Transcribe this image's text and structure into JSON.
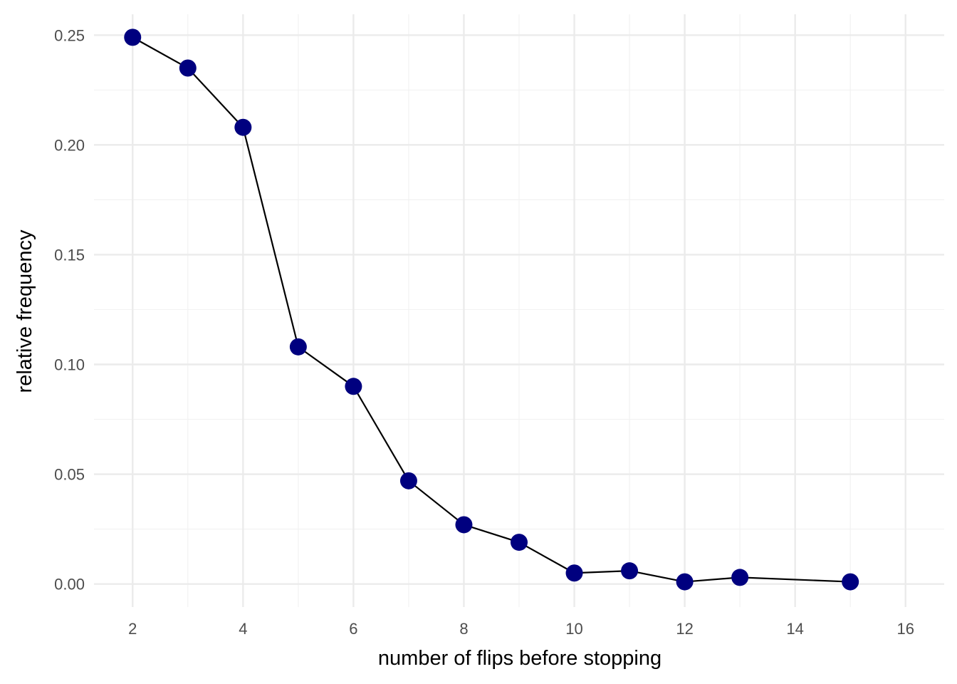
{
  "chart_data": {
    "type": "line",
    "title": "",
    "xlabel": "number of flips before stopping",
    "ylabel": "relative frequency",
    "xlim": [
      1.3,
      16.7
    ],
    "ylim": [
      -0.0105,
      0.2595
    ],
    "x_ticks": [
      2,
      4,
      6,
      8,
      10,
      12,
      14,
      16
    ],
    "x_tick_labels": [
      "2",
      "4",
      "6",
      "8",
      "10",
      "12",
      "14",
      "16"
    ],
    "y_ticks": [
      0.0,
      0.05,
      0.1,
      0.15,
      0.2,
      0.25
    ],
    "y_tick_labels": [
      "0.00",
      "0.05",
      "0.10",
      "0.15",
      "0.20",
      "0.25"
    ],
    "grid": true,
    "legend": "none",
    "series": [
      {
        "x": [
          2,
          3,
          4,
          5,
          6,
          7,
          8,
          9,
          10,
          11,
          12,
          13,
          15
        ],
        "values": [
          0.249,
          0.235,
          0.208,
          0.108,
          0.09,
          0.047,
          0.027,
          0.019,
          0.005,
          0.006,
          0.001,
          0.003,
          0.001
        ],
        "line_color": "#000000",
        "point_color": "#00007f"
      }
    ],
    "colors": {
      "grid_major": "#ebebeb",
      "grid_minor": "#f2f2f2"
    }
  }
}
